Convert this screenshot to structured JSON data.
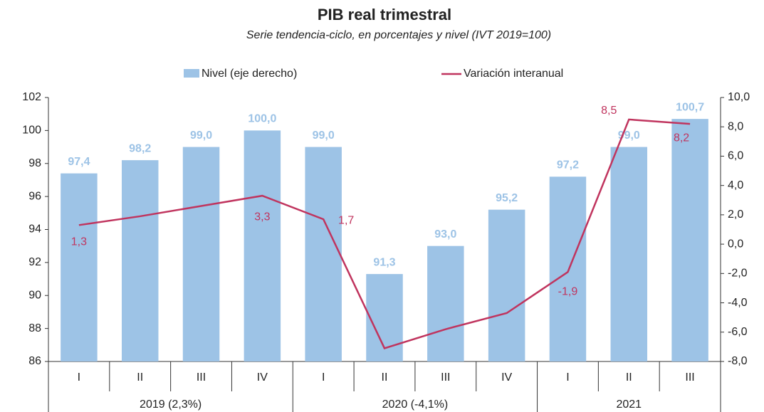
{
  "chart_data": {
    "type": "bar_line",
    "title": "PIB real trimestral",
    "subtitle": "Serie tendencia-ciclo, en porcentajes y nivel (IVT 2019=100)",
    "categories": [
      "I",
      "II",
      "III",
      "IV",
      "I",
      "II",
      "III",
      "IV",
      "I",
      "II",
      "III"
    ],
    "groups": [
      {
        "label": "2019 (2,3%)",
        "span": 4
      },
      {
        "label": "2020 (-4,1%)",
        "span": 4
      },
      {
        "label": "2021",
        "span": 3
      }
    ],
    "series": [
      {
        "name": "Nivel (eje derecho)",
        "type": "bar",
        "color": "#9dc3e6",
        "label_color": "#9dc3e6",
        "values": [
          97.4,
          98.2,
          99.0,
          100.0,
          99.0,
          91.3,
          93.0,
          95.2,
          97.2,
          99.0,
          100.7
        ],
        "value_labels": [
          "97,4",
          "98,2",
          "99,0",
          "100,0",
          "99,0",
          "91,3",
          "93,0",
          "95,2",
          "97,2",
          "99,0",
          "100,7"
        ]
      },
      {
        "name": "Variación interanual",
        "type": "line",
        "axis": "y2",
        "color": "#c0345e",
        "values": [
          1.3,
          1.9,
          2.6,
          3.3,
          1.7,
          -7.1,
          -5.8,
          -4.7,
          -1.9,
          8.5,
          8.2
        ],
        "value_labels": [
          "1,3",
          null,
          null,
          "3,3",
          "1,7",
          null,
          null,
          null,
          "-1,9",
          "8,5",
          "8,2"
        ]
      }
    ],
    "ylim": [
      86,
      102
    ],
    "yticks": [
      86,
      88,
      90,
      92,
      94,
      96,
      98,
      100,
      102
    ],
    "y2lim": [
      -8,
      10
    ],
    "y2ticks": [
      {
        "value": -8,
        "label": "-8,0"
      },
      {
        "value": -6,
        "label": "-6,0"
      },
      {
        "value": -4,
        "label": "-4,0"
      },
      {
        "value": -2,
        "label": "-2,0"
      },
      {
        "value": 0,
        "label": "0,0"
      },
      {
        "value": 2,
        "label": "2,0"
      },
      {
        "value": 4,
        "label": "4,0"
      },
      {
        "value": 6,
        "label": "6,0"
      },
      {
        "value": 8,
        "label": "8,0"
      },
      {
        "value": 10,
        "label": "10,0"
      }
    ]
  }
}
